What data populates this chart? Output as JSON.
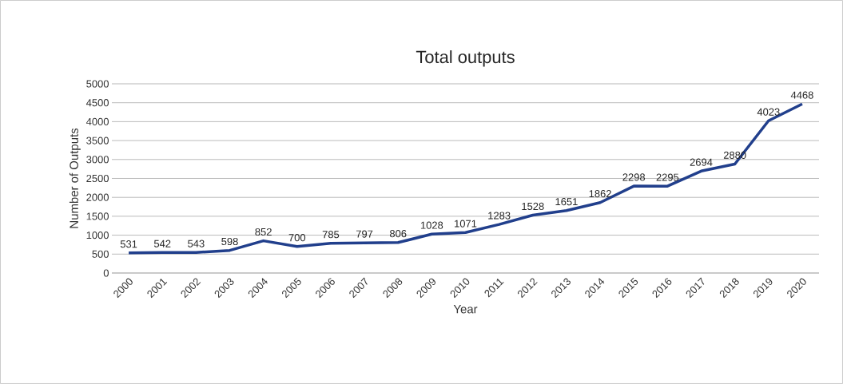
{
  "chart_data": {
    "type": "line",
    "title": "Total outputs",
    "xlabel": "Year",
    "ylabel": "Number of Outputs",
    "categories": [
      "2000",
      "2001",
      "2002",
      "2003",
      "2004",
      "2005",
      "2006",
      "2007",
      "2008",
      "2009",
      "2010",
      "2011",
      "2012",
      "2013",
      "2014",
      "2015",
      "2016",
      "2017",
      "2018",
      "2019",
      "2020"
    ],
    "values": [
      531,
      542,
      543,
      598,
      852,
      700,
      785,
      797,
      806,
      1028,
      1071,
      1283,
      1528,
      1651,
      1862,
      2298,
      2295,
      2694,
      2880,
      4023,
      4468
    ],
    "color": "#213f8c",
    "ylim": [
      0,
      5000
    ],
    "yticks": [
      0,
      500,
      1000,
      1500,
      2000,
      2500,
      3000,
      3500,
      4000,
      4500,
      5000
    ],
    "grid": "y",
    "data_labels": true
  }
}
